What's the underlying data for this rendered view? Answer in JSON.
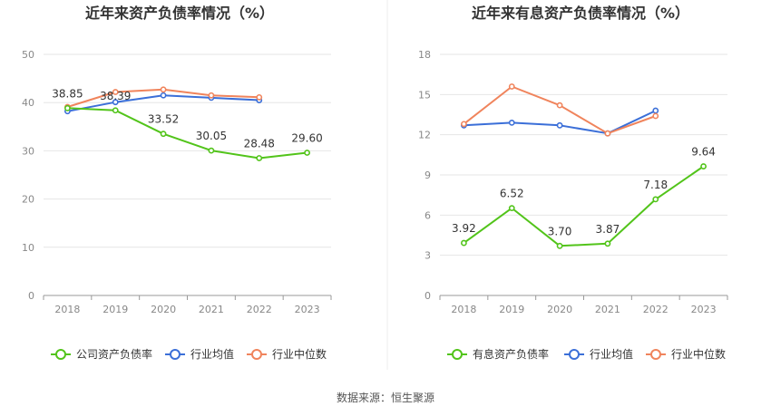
{
  "source": "数据来源：恒生聚源",
  "chart_data": [
    {
      "type": "line",
      "title": "近年来资产负债率情况（%）",
      "categories": [
        "2018",
        "2019",
        "2020",
        "2021",
        "2022",
        "2023"
      ],
      "ylim": [
        0,
        50
      ],
      "yticks": [
        0,
        10,
        20,
        30,
        40,
        50
      ],
      "grid": true,
      "legend_position": "bottom",
      "series": [
        {
          "name": "公司资产负债率",
          "color": "#52c41a",
          "values": [
            38.85,
            38.39,
            33.52,
            30.05,
            28.48,
            29.6
          ],
          "labels": [
            "38.85",
            "38.39",
            "33.52",
            "30.05",
            "28.48",
            "29.60"
          ]
        },
        {
          "name": "行业均值",
          "color": "#3b6fd8",
          "values": [
            38.2,
            40.1,
            41.5,
            41.0,
            40.5,
            null
          ]
        },
        {
          "name": "行业中位数",
          "color": "#f0845c",
          "values": [
            39.1,
            42.2,
            42.7,
            41.5,
            41.1,
            null
          ]
        }
      ]
    },
    {
      "type": "line",
      "title": "近年来有息资产负债率情况（%）",
      "categories": [
        "2018",
        "2019",
        "2020",
        "2021",
        "2022",
        "2023"
      ],
      "ylim": [
        0,
        18
      ],
      "yticks": [
        0,
        3,
        6,
        9,
        12,
        15,
        18
      ],
      "grid": true,
      "legend_position": "bottom",
      "series": [
        {
          "name": "有息资产负债率",
          "color": "#52c41a",
          "values": [
            3.92,
            6.52,
            3.7,
            3.87,
            7.18,
            9.64
          ],
          "labels": [
            "3.92",
            "6.52",
            "3.70",
            "3.87",
            "7.18",
            "9.64"
          ]
        },
        {
          "name": "行业均值",
          "color": "#3b6fd8",
          "values": [
            12.7,
            12.9,
            12.7,
            12.1,
            13.8,
            null
          ]
        },
        {
          "name": "行业中位数",
          "color": "#f0845c",
          "values": [
            12.8,
            15.6,
            14.2,
            12.1,
            13.4,
            null
          ]
        }
      ]
    }
  ]
}
